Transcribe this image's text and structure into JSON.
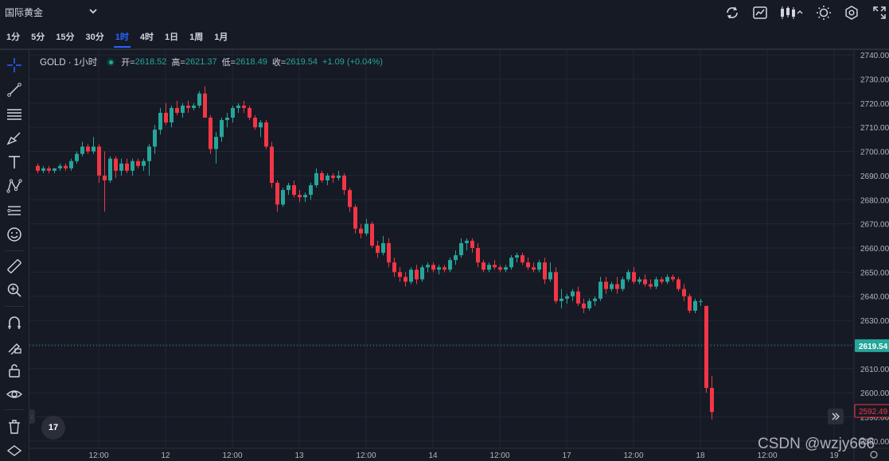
{
  "header": {
    "symbol_name": "国际黄金",
    "icons": [
      "refresh-icon",
      "chart-compare-icon",
      "candles-type-icon",
      "theme-icon",
      "settings-icon",
      "fullscreen-icon"
    ]
  },
  "intervals": [
    {
      "label": "1分",
      "active": false
    },
    {
      "label": "5分",
      "active": false
    },
    {
      "label": "15分",
      "active": false
    },
    {
      "label": "30分",
      "active": false
    },
    {
      "label": "1时",
      "active": true
    },
    {
      "label": "4时",
      "active": false
    },
    {
      "label": "1日",
      "active": false
    },
    {
      "label": "1周",
      "active": false
    },
    {
      "label": "1月",
      "active": false
    }
  ],
  "toolbar": {
    "tools": [
      "crosshair-icon",
      "trend-line-icon",
      "fib-lines-icon",
      "brush-icon",
      "text-icon",
      "pattern-icon",
      "measure-icon",
      "emoji-icon",
      "ruler-icon",
      "zoom-in-icon",
      "magnet-icon",
      "lock-drawing-icon",
      "lock-icon",
      "eye-icon",
      "trash-icon",
      "layers-icon"
    ]
  },
  "legend": {
    "symbol": "GOLD · 1小时",
    "open_label": "开=",
    "open": "2618.52",
    "high_label": "高=",
    "high": "2621.37",
    "low_label": "低=",
    "low": "2618.49",
    "close_label": "收=",
    "close": "2619.54",
    "change": "+1.09 (+0.04%)"
  },
  "logo_text": "17",
  "watermark": "CSDN @wzjy666",
  "colors": {
    "background": "#161a25",
    "grid": "#232733",
    "up": "#26a69a",
    "down": "#f23645",
    "text": "#d1d4dc",
    "axis_text": "#b2b5be",
    "accent": "#2962ff"
  },
  "chart_data": {
    "type": "candlestick",
    "symbol": "GOLD",
    "interval": "1小时",
    "ylim": [
      2577,
      2742
    ],
    "y_ticks": [
      2580,
      2590,
      2600,
      2610,
      2620,
      2630,
      2640,
      2650,
      2660,
      2670,
      2680,
      2690,
      2700,
      2710,
      2720,
      2730,
      2740
    ],
    "y_tick_labels": [
      "2580.00",
      "2590.00",
      "2600.00",
      "2610.00",
      "2620.00",
      "2630.00",
      "2640.00",
      "2650.00",
      "2660.00",
      "2670.00",
      "2680.00",
      "2690.00",
      "2700.00",
      "2710.00",
      "2720.00",
      "2730.00",
      "2740.00"
    ],
    "x_labels": [
      "12:00",
      "12",
      "12:00",
      "13",
      "12:00",
      "14",
      "12:00",
      "17",
      "12:00",
      "18",
      "12:00",
      "19"
    ],
    "x_label_bars": [
      11,
      23,
      35,
      47,
      59,
      71,
      83,
      95,
      107,
      119,
      131,
      143
    ],
    "current_price": 2619.54,
    "current_price_label": "2619.54",
    "last_close": 2592.49,
    "last_close_label": "2592.49",
    "grid": true,
    "candles": [
      [
        2694,
        2695,
        2691,
        2692
      ],
      [
        2692,
        2694,
        2691,
        2693
      ],
      [
        2693,
        2694,
        2691,
        2692
      ],
      [
        2692,
        2693,
        2691,
        2693
      ],
      [
        2693,
        2695,
        2692,
        2694
      ],
      [
        2694,
        2695,
        2692,
        2693
      ],
      [
        2693,
        2697,
        2692,
        2696
      ],
      [
        2696,
        2700,
        2695,
        2699
      ],
      [
        2699,
        2704,
        2698,
        2702
      ],
      [
        2702,
        2703,
        2699,
        2700
      ],
      [
        2700,
        2706,
        2699,
        2702
      ],
      [
        2702,
        2703,
        2687,
        2690
      ],
      [
        2690,
        2700,
        2675,
        2688
      ],
      [
        2688,
        2698,
        2687,
        2697
      ],
      [
        2697,
        2698,
        2689,
        2692
      ],
      [
        2692,
        2697,
        2690,
        2695
      ],
      [
        2695,
        2697,
        2691,
        2692
      ],
      [
        2692,
        2697,
        2690,
        2696
      ],
      [
        2696,
        2697,
        2693,
        2694
      ],
      [
        2694,
        2697,
        2692,
        2696
      ],
      [
        2696,
        2703,
        2690,
        2702
      ],
      [
        2702,
        2711,
        2699,
        2709
      ],
      [
        2709,
        2718,
        2707,
        2716
      ],
      [
        2716,
        2720,
        2711,
        2712
      ],
      [
        2712,
        2719,
        2710,
        2718
      ],
      [
        2718,
        2721,
        2715,
        2716
      ],
      [
        2716,
        2720,
        2714,
        2719
      ],
      [
        2719,
        2721,
        2716,
        2718
      ],
      [
        2718,
        2720,
        2717,
        2719
      ],
      [
        2719,
        2725,
        2718,
        2724
      ],
      [
        2724,
        2727,
        2715,
        2714
      ],
      [
        2714,
        2715,
        2699,
        2701
      ],
      [
        2701,
        2708,
        2695,
        2706
      ],
      [
        2706,
        2714,
        2704,
        2713
      ],
      [
        2713,
        2716,
        2710,
        2714
      ],
      [
        2714,
        2719,
        2712,
        2718
      ],
      [
        2718,
        2720,
        2716,
        2719
      ],
      [
        2719,
        2721,
        2716,
        2718
      ],
      [
        2718,
        2719,
        2713,
        2714
      ],
      [
        2714,
        2715,
        2709,
        2710
      ],
      [
        2710,
        2713,
        2706,
        2712
      ],
      [
        2712,
        2713,
        2701,
        2702
      ],
      [
        2702,
        2704,
        2685,
        2687
      ],
      [
        2687,
        2688,
        2675,
        2678
      ],
      [
        2678,
        2685,
        2677,
        2684
      ],
      [
        2684,
        2687,
        2682,
        2686
      ],
      [
        2686,
        2688,
        2681,
        2682
      ],
      [
        2682,
        2684,
        2679,
        2681
      ],
      [
        2681,
        2683,
        2679,
        2682
      ],
      [
        2682,
        2687,
        2680,
        2686
      ],
      [
        2686,
        2693,
        2685,
        2691
      ],
      [
        2691,
        2692,
        2687,
        2688
      ],
      [
        2688,
        2691,
        2686,
        2690
      ],
      [
        2690,
        2691,
        2687,
        2689
      ],
      [
        2689,
        2692,
        2688,
        2690
      ],
      [
        2690,
        2691,
        2682,
        2684
      ],
      [
        2684,
        2685,
        2675,
        2677
      ],
      [
        2677,
        2678,
        2666,
        2668
      ],
      [
        2668,
        2670,
        2664,
        2666
      ],
      [
        2666,
        2672,
        2665,
        2670
      ],
      [
        2670,
        2671,
        2660,
        2661
      ],
      [
        2661,
        2663,
        2656,
        2658
      ],
      [
        2658,
        2665,
        2657,
        2662
      ],
      [
        2662,
        2664,
        2652,
        2654
      ],
      [
        2654,
        2656,
        2648,
        2650
      ],
      [
        2650,
        2652,
        2646,
        2648
      ],
      [
        2648,
        2650,
        2644,
        2646
      ],
      [
        2646,
        2652,
        2645,
        2651
      ],
      [
        2651,
        2653,
        2645,
        2647
      ],
      [
        2647,
        2653,
        2646,
        2652
      ],
      [
        2652,
        2654,
        2650,
        2653
      ],
      [
        2653,
        2654,
        2650,
        2651
      ],
      [
        2651,
        2653,
        2649,
        2652
      ],
      [
        2652,
        2653,
        2650,
        2651
      ],
      [
        2651,
        2656,
        2650,
        2655
      ],
      [
        2655,
        2659,
        2653,
        2657
      ],
      [
        2657,
        2664,
        2656,
        2662
      ],
      [
        2662,
        2664,
        2659,
        2663
      ],
      [
        2663,
        2664,
        2658,
        2660
      ],
      [
        2660,
        2662,
        2652,
        2654
      ],
      [
        2654,
        2655,
        2650,
        2651
      ],
      [
        2651,
        2654,
        2650,
        2653
      ],
      [
        2653,
        2655,
        2651,
        2652
      ],
      [
        2652,
        2653,
        2650,
        2651
      ],
      [
        2651,
        2653,
        2650,
        2652
      ],
      [
        2652,
        2657,
        2651,
        2656
      ],
      [
        2656,
        2658,
        2654,
        2657
      ],
      [
        2657,
        2658,
        2653,
        2654
      ],
      [
        2654,
        2656,
        2651,
        2652
      ],
      [
        2652,
        2654,
        2650,
        2651
      ],
      [
        2651,
        2655,
        2650,
        2654
      ],
      [
        2654,
        2656,
        2645,
        2647
      ],
      [
        2647,
        2654,
        2646,
        2650
      ],
      [
        2650,
        2652,
        2637,
        2638
      ],
      [
        2638,
        2643,
        2635,
        2639
      ],
      [
        2639,
        2641,
        2637,
        2640
      ],
      [
        2640,
        2643,
        2638,
        2642
      ],
      [
        2642,
        2644,
        2636,
        2637
      ],
      [
        2637,
        2639,
        2633,
        2635
      ],
      [
        2635,
        2639,
        2634,
        2638
      ],
      [
        2638,
        2640,
        2636,
        2639
      ],
      [
        2639,
        2648,
        2638,
        2646
      ],
      [
        2646,
        2648,
        2641,
        2643
      ],
      [
        2643,
        2646,
        2642,
        2645
      ],
      [
        2645,
        2648,
        2641,
        2643
      ],
      [
        2643,
        2648,
        2642,
        2647
      ],
      [
        2647,
        2651,
        2646,
        2650
      ],
      [
        2650,
        2652,
        2645,
        2646
      ],
      [
        2646,
        2648,
        2645,
        2647
      ],
      [
        2647,
        2649,
        2644,
        2645
      ],
      [
        2645,
        2647,
        2643,
        2644
      ],
      [
        2644,
        2648,
        2643,
        2647
      ],
      [
        2647,
        2648,
        2645,
        2646
      ],
      [
        2646,
        2649,
        2645,
        2648
      ],
      [
        2648,
        2649,
        2646,
        2647
      ],
      [
        2647,
        2648,
        2642,
        2643
      ],
      [
        2643,
        2645,
        2638,
        2640
      ],
      [
        2640,
        2641,
        2633,
        2634
      ],
      [
        2634,
        2639,
        2633,
        2638
      ],
      [
        2638,
        2639,
        2636,
        2638
      ],
      [
        2636,
        2636,
        2600,
        2602
      ],
      [
        2602,
        2607,
        2589,
        2592
      ]
    ]
  }
}
